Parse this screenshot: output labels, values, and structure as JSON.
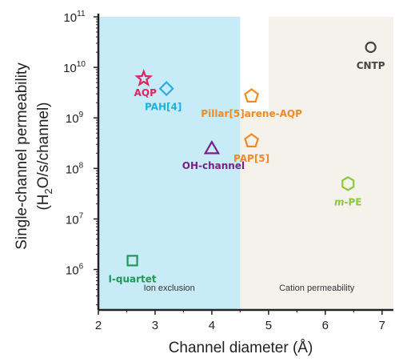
{
  "chart_data": {
    "type": "scatter",
    "title": "",
    "xlabel": "Channel diameter (Å)",
    "ylabel_line1": "Single-channel permeability",
    "ylabel_line2_parts": [
      "(H",
      "2",
      "O/s/channel)"
    ],
    "xlim": [
      2,
      7.2
    ],
    "ylim_log10": [
      5.2,
      11
    ],
    "y_scale": "log",
    "x_ticks": [
      2,
      3,
      4,
      5,
      6,
      7
    ],
    "x_tick_labels": [
      "2",
      "3",
      "4",
      "5",
      "6",
      "7"
    ],
    "y_ticks_exponents": [
      6,
      7,
      8,
      9,
      10,
      11
    ],
    "y_tick_base": "10",
    "regions": [
      {
        "label": "Ion exclusion",
        "color": "#c8ecf7"
      },
      {
        "label": "Cation permeability",
        "color": "#f5f2ec"
      }
    ],
    "points": [
      {
        "label": "AQP",
        "x": 2.8,
        "y": 6000000000.0,
        "marker": "star",
        "color": "#e0245e"
      },
      {
        "label": "PAH[4]",
        "x": 3.2,
        "y": 3800000000.0,
        "marker": "diamond",
        "color": "#1fb0e0"
      },
      {
        "label": "Pillar[5]arene-AQP",
        "x": 4.7,
        "y": 2700000000.0,
        "marker": "pentagon",
        "color": "#f08a24"
      },
      {
        "label": "PAP[5]",
        "x": 4.7,
        "y": 350000000.0,
        "marker": "pentagon",
        "color": "#f08a24"
      },
      {
        "label": "OH-channel",
        "x": 4.0,
        "y": 250000000.0,
        "marker": "triangle",
        "color": "#7a1f8a"
      },
      {
        "label": "CNTP",
        "x": 6.8,
        "y": 25000000000.0,
        "marker": "circle",
        "color": "#444444"
      },
      {
        "label": "m-PE",
        "x": 6.4,
        "y": 50000000.0,
        "marker": "hexagon",
        "color": "#8cc63f"
      },
      {
        "label": "I-quartet",
        "x": 2.6,
        "y": 1500000.0,
        "marker": "square",
        "color": "#1a9a50"
      }
    ]
  }
}
